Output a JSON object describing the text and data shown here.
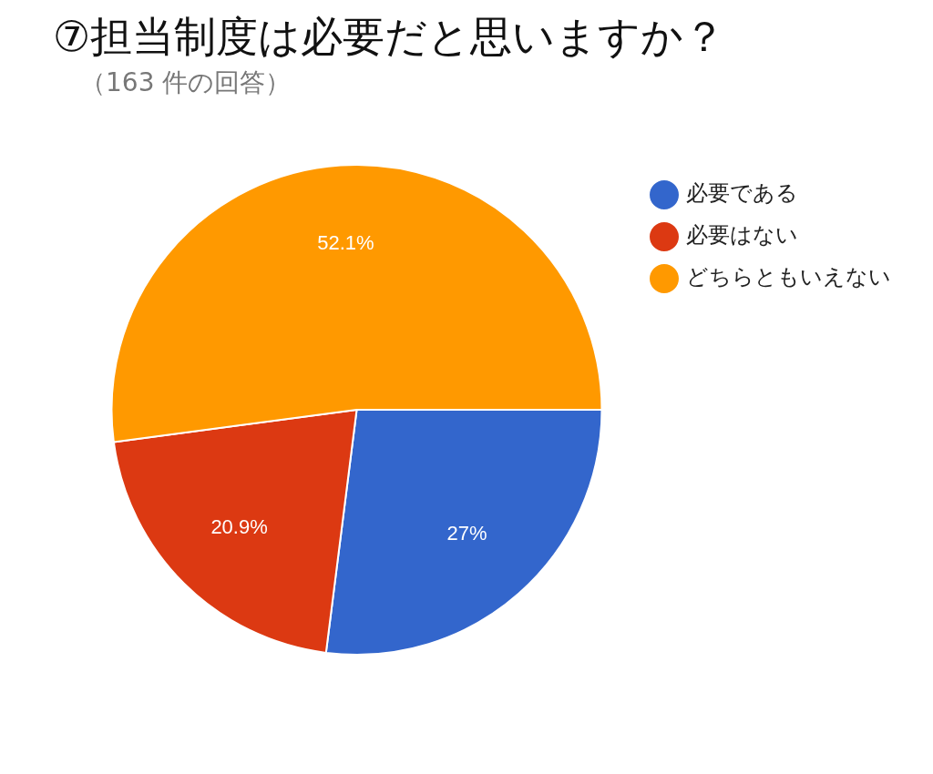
{
  "chart_data": {
    "type": "pie",
    "title": "⑦担当制度は必要だと思いますか？",
    "subtitle": "（163 件の回答）",
    "categories": [
      "必要である",
      "必要はない",
      "どちらともいえない"
    ],
    "values": [
      27,
      20.9,
      52.1
    ],
    "colors": [
      "#3366cc",
      "#dc3912",
      "#ff9900"
    ],
    "value_labels": [
      "27%",
      "20.9%",
      "52.1%"
    ],
    "legend": "right"
  }
}
